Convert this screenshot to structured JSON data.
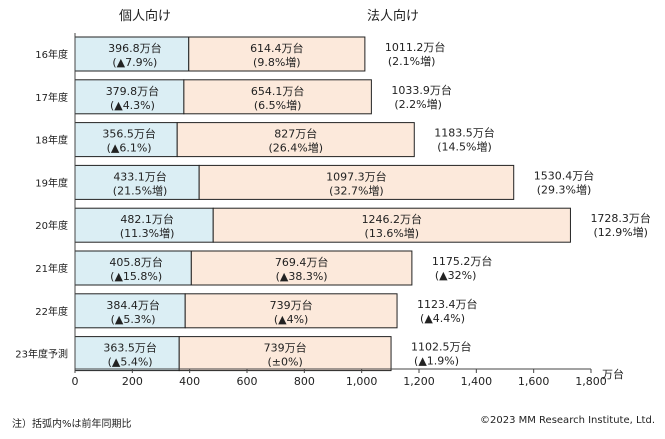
{
  "chart_data": {
    "type": "bar",
    "orientation": "horizontal",
    "stacked": true,
    "categories": [
      "16年度",
      "17年度",
      "18年度",
      "19年度",
      "20年度",
      "21年度",
      "22年度",
      "23年度予測"
    ],
    "series": [
      {
        "name": "個人向け",
        "color": "#dbeef4",
        "values": [
          396.8,
          379.8,
          356.5,
          433.1,
          482.1,
          405.8,
          384.4,
          363.5
        ],
        "labels": [
          "396.8万台",
          "379.8万台",
          "356.5万台",
          "433.1万台",
          "482.1万台",
          "405.8万台",
          "384.4万台",
          "363.5万台"
        ],
        "changes": [
          "(▲7.9%)",
          "(▲4.3%)",
          "(▲6.1%)",
          "(21.5%増)",
          "(11.3%増)",
          "(▲15.8%)",
          "(▲5.3%)",
          "(▲5.4%)"
        ]
      },
      {
        "name": "法人向け",
        "color": "#fce9db",
        "values": [
          614.4,
          654.1,
          827,
          1097.3,
          1246.2,
          769.4,
          739,
          739
        ],
        "labels": [
          "614.4万台",
          "654.1万台",
          "827万台",
          "1097.3万台",
          "1246.2万台",
          "769.4万台",
          "739万台",
          "739万台"
        ],
        "changes": [
          "(9.8%増)",
          "(6.5%増)",
          "(26.4%増)",
          "(32.7%増)",
          "(13.6%増)",
          "(▲38.3%)",
          "(▲4%)",
          "(±0%)"
        ]
      }
    ],
    "totals": {
      "values": [
        1011.2,
        1033.9,
        1183.5,
        1530.4,
        1728.3,
        1175.2,
        1123.4,
        1102.5
      ],
      "labels": [
        "1011.2万台",
        "1033.9万台",
        "1183.5万台",
        "1530.4万台",
        "1728.3万台",
        "1175.2万台",
        "1123.4万台",
        "1102.5万台"
      ],
      "changes": [
        "(2.1%増)",
        "(2.2%増)",
        "(14.5%増)",
        "(29.3%増)",
        "(12.9%増)",
        "(▲32%)",
        "(▲4.4%)",
        "(▲1.9%)"
      ]
    },
    "xlim": [
      0,
      1800
    ],
    "xticks": [
      0,
      200,
      400,
      600,
      800,
      1000,
      1200,
      1400,
      1600,
      1800
    ],
    "xtick_labels": [
      "0",
      "200",
      "400",
      "600",
      "800",
      "1,000",
      "1,200",
      "1,400",
      "1,600",
      "1,800"
    ],
    "xunit": "万台",
    "grid": false
  },
  "footer": {
    "note": "注）括弧内%は前年同期比",
    "copyright": "©2023 MM Research Institute, Ltd."
  },
  "colors": {
    "bar_border": "#222222",
    "axis": "#444444",
    "text": "#222222"
  }
}
